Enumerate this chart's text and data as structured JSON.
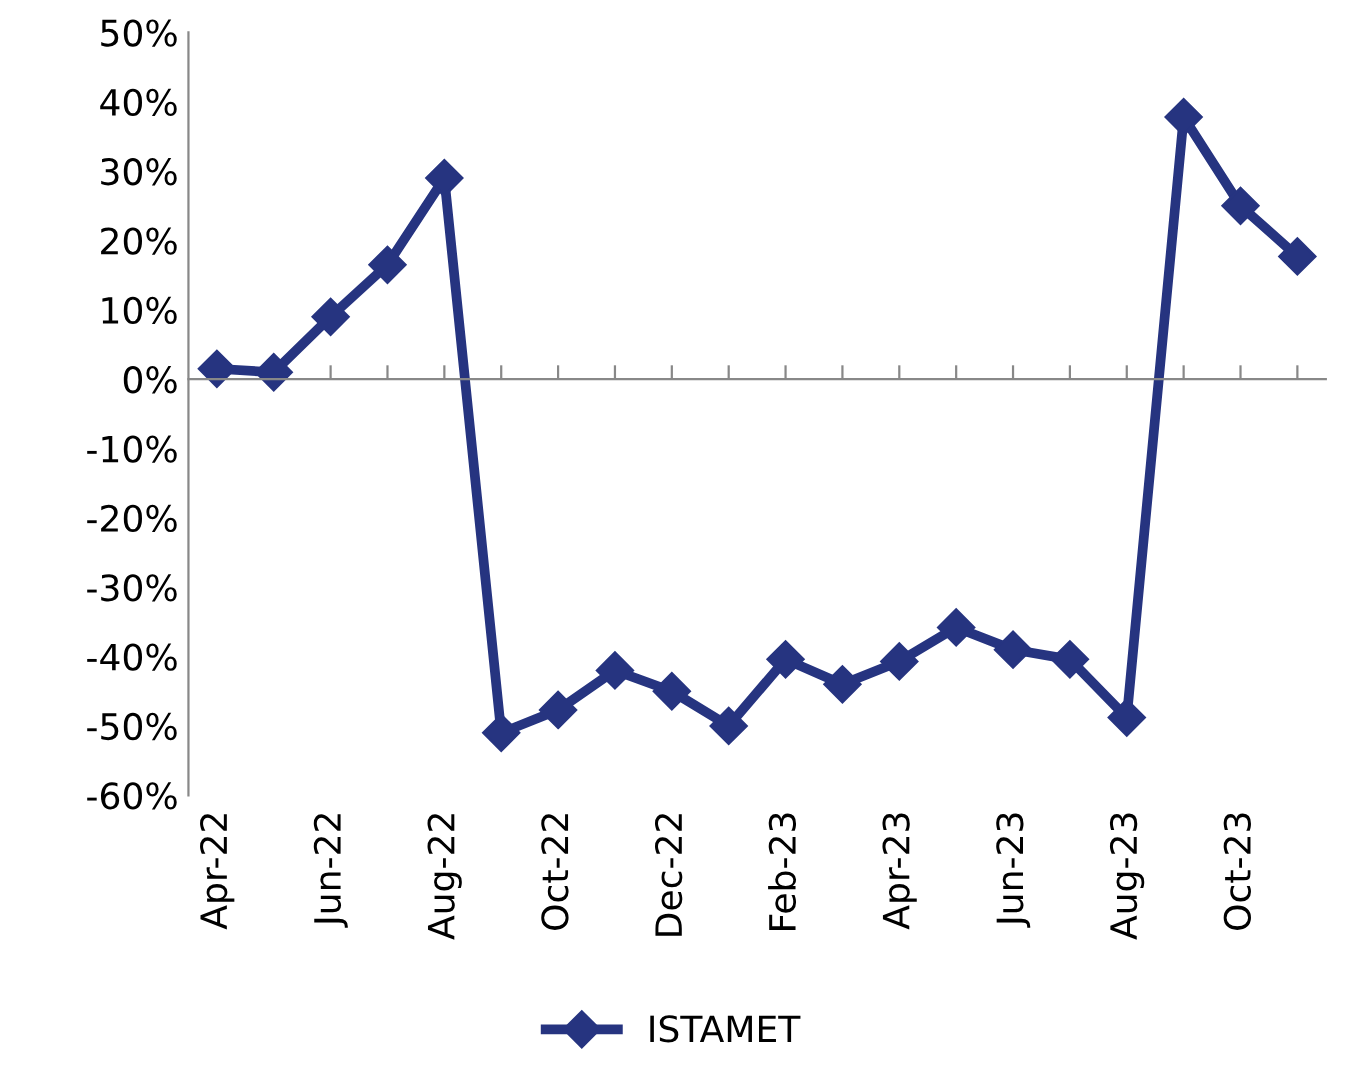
{
  "chart_data": {
    "type": "line",
    "categories": [
      "Apr-22",
      null,
      "Jun-22",
      null,
      "Aug-22",
      null,
      "Oct-22",
      null,
      "Dec-22",
      null,
      "Feb-23",
      null,
      "Apr-23",
      null,
      "Jun-23",
      null,
      "Aug-23",
      null,
      "Oct-23",
      null
    ],
    "series": [
      {
        "name": "ISTAMET",
        "color": "#263480",
        "values": [
          1.5,
          1,
          9,
          16.5,
          29,
          -51,
          -47.7,
          -42,
          -45,
          -50,
          -40.4,
          -44,
          -40.7,
          -35.8,
          -39,
          -40.4,
          -48.8,
          37.8,
          25,
          17.7
        ]
      }
    ],
    "ylim": [
      -60,
      50
    ],
    "yticks": [
      {
        "value": -60,
        "label": "-60%"
      },
      {
        "value": -50,
        "label": "-50%"
      },
      {
        "value": -40,
        "label": "-40%"
      },
      {
        "value": -30,
        "label": "-30%"
      },
      {
        "value": -20,
        "label": "-20%"
      },
      {
        "value": -10,
        "label": "-10%"
      },
      {
        "value": 0,
        "label": "0%"
      },
      {
        "value": 10,
        "label": "10%"
      },
      {
        "value": 20,
        "label": "20%"
      },
      {
        "value": 30,
        "label": "30%"
      },
      {
        "value": 40,
        "label": "40%"
      },
      {
        "value": 50,
        "label": "50%"
      }
    ],
    "marker": "diamond",
    "line_style": "solid",
    "legend": "bottom"
  }
}
